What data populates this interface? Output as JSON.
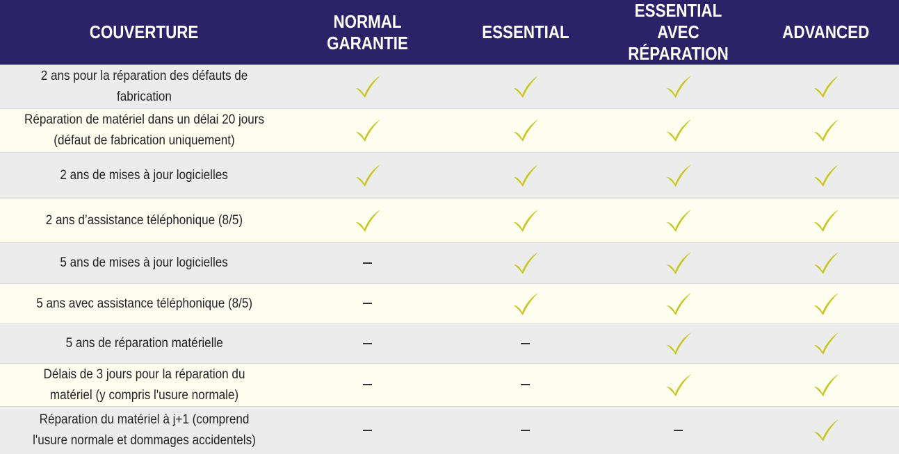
{
  "colors": {
    "header_bg": "#2c2268",
    "check": "#c3c81a",
    "row_odd": "#ececec",
    "row_even": "#fdfdf0"
  },
  "icons": {
    "check": "check-icon",
    "dash": "dash-icon"
  },
  "headers": [
    "COUVERTURE",
    "NORMAL GARANTIE",
    "ESSENTIAL",
    "ESSENTIAL AVEC RÉPARATION",
    "ADVANCED"
  ],
  "rows": [
    {
      "label": "2 ans pour la réparation des défauts de fabrication",
      "cells": [
        "check",
        "check",
        "check",
        "check"
      ]
    },
    {
      "label": "Réparation de matériel dans un délai  20 jours (défaut de fabrication uniquement)",
      "cells": [
        "check",
        "check",
        "check",
        "check"
      ]
    },
    {
      "label": "2 ans de mises à jour logicielles",
      "cells": [
        "check",
        "check",
        "check",
        "check"
      ]
    },
    {
      "label": "2 ans d’assistance téléphonique (8/5)",
      "cells": [
        "check",
        "check",
        "check",
        "check"
      ]
    },
    {
      "label": "5 ans de mises à jour logicielles",
      "cells": [
        "dash",
        "check",
        "check",
        "check"
      ]
    },
    {
      "label": "5 ans avec assistance téléphonique (8/5)",
      "cells": [
        "dash",
        "check",
        "check",
        "check"
      ]
    },
    {
      "label": "5 ans de réparation matérielle",
      "cells": [
        "dash",
        "dash",
        "check",
        "check"
      ]
    },
    {
      "label": "Délais de 3 jours pour la réparation du matériel (y compris l'usure normale)",
      "cells": [
        "dash",
        "dash",
        "check",
        "check"
      ]
    },
    {
      "label": "Réparation du matériel à j+1 (comprend l'usure normale et dommages accidentels)",
      "cells": [
        "dash",
        "dash",
        "dash",
        "check"
      ]
    }
  ]
}
